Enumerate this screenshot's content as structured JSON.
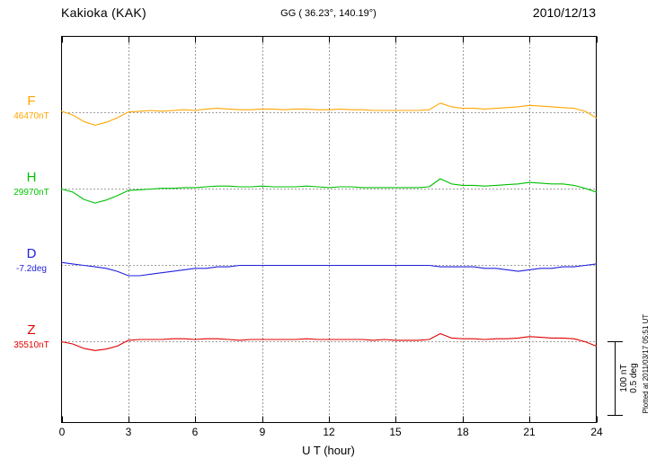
{
  "header": {
    "station": "Kakioka (KAK)",
    "coordinates": "GG ( 36.23°, 140.19°)",
    "date": "2010/12/13"
  },
  "axis": {
    "x_label": "U T (hour)",
    "x_ticks": [
      0,
      3,
      6,
      9,
      12,
      15,
      18,
      21,
      24
    ],
    "x_range_hours": [
      0,
      24
    ]
  },
  "traces": [
    {
      "label": "F",
      "baseline_label": "46470nT",
      "color": "#ffa500"
    },
    {
      "label": "H",
      "baseline_label": "29970nT",
      "color": "#00c000"
    },
    {
      "label": "D",
      "baseline_label": "-7.2deg",
      "color": "#2222dd"
    },
    {
      "label": "Z",
      "baseline_label": "35510nT",
      "color": "#e00000"
    }
  ],
  "scale_bar": {
    "labels": [
      "100 nT",
      "0.5 deg"
    ],
    "nT": 100,
    "deg": 0.5
  },
  "footer": {
    "plotted_at": "Plotted at 2011/03/17 05:51 UT"
  },
  "chart_data": {
    "type": "line",
    "title": "Kakioka (KAK) magnetogram 2010/12/13",
    "xlabel": "U T (hour)",
    "x": {
      "start": 0,
      "end": 24,
      "step": 0.5,
      "unit": "hour"
    },
    "scale_reference": {
      "nT_per_bar": 100,
      "deg_per_bar": 0.5
    },
    "gridlines": "vertical dotted every 3 hours; dotted horizontal baseline per trace",
    "series": [
      {
        "name": "F",
        "unit": "nT",
        "baseline": 46470,
        "offsets": [
          2,
          -3,
          -12,
          -17,
          -13,
          -7,
          1,
          2,
          3,
          2,
          3,
          4,
          3,
          5,
          6,
          5,
          4,
          4,
          5,
          5,
          4,
          5,
          5,
          4,
          4,
          5,
          4,
          4,
          3,
          3,
          3,
          3,
          3,
          4,
          13,
          8,
          6,
          6,
          5,
          6,
          7,
          8,
          10,
          9,
          8,
          7,
          6,
          2,
          -7
        ]
      },
      {
        "name": "H",
        "unit": "nT",
        "baseline": 29970,
        "offsets": [
          0,
          -4,
          -14,
          -19,
          -15,
          -9,
          -2,
          -1,
          0,
          1,
          1,
          2,
          2,
          3,
          4,
          4,
          3,
          3,
          4,
          3,
          3,
          3,
          4,
          3,
          2,
          3,
          3,
          2,
          2,
          2,
          2,
          2,
          2,
          3,
          14,
          7,
          5,
          5,
          4,
          5,
          6,
          7,
          9,
          8,
          7,
          7,
          5,
          1,
          -4
        ]
      },
      {
        "name": "D",
        "unit": "deg",
        "baseline": -7.2,
        "offsets": [
          0.02,
          0.01,
          0,
          -0.01,
          -0.02,
          -0.04,
          -0.07,
          -0.07,
          -0.06,
          -0.05,
          -0.04,
          -0.03,
          -0.02,
          -0.02,
          -0.01,
          -0.01,
          0,
          0,
          0,
          0,
          0,
          0,
          0,
          0,
          0,
          0,
          0,
          0,
          0,
          0,
          0,
          0,
          0,
          0,
          -0.01,
          -0.01,
          -0.01,
          -0.01,
          -0.02,
          -0.02,
          -0.03,
          -0.04,
          -0.03,
          -0.02,
          -0.02,
          -0.01,
          -0.01,
          0,
          0.01
        ]
      },
      {
        "name": "Z",
        "unit": "nT",
        "baseline": 35510,
        "offsets": [
          0,
          -3,
          -9,
          -12,
          -10,
          -6,
          2,
          3,
          3,
          3,
          4,
          4,
          3,
          4,
          4,
          3,
          2,
          3,
          3,
          3,
          3,
          3,
          4,
          3,
          3,
          3,
          3,
          3,
          2,
          3,
          2,
          2,
          2,
          3,
          11,
          5,
          4,
          4,
          3,
          4,
          4,
          5,
          7,
          6,
          5,
          5,
          4,
          0,
          -6
        ]
      }
    ]
  }
}
